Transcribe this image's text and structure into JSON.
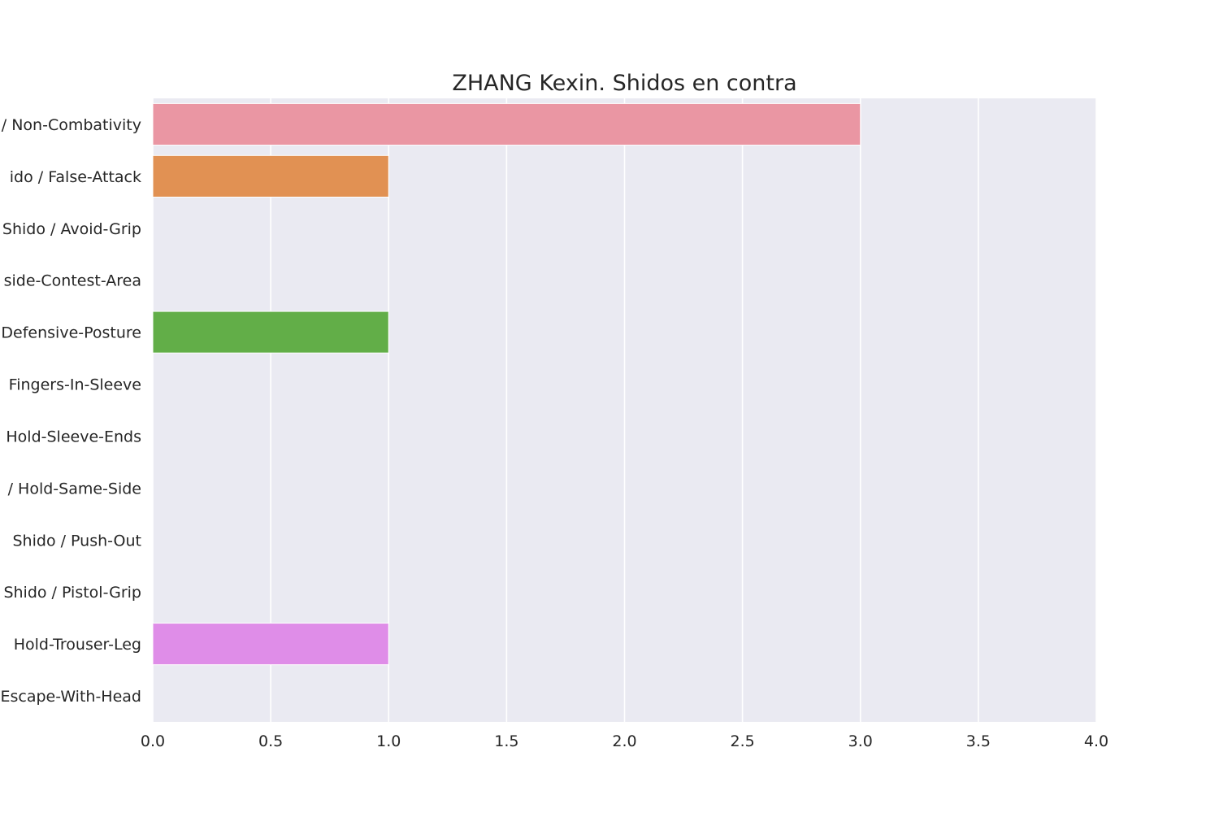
{
  "chart_data": {
    "type": "bar",
    "orientation": "horizontal",
    "title": "ZHANG Kexin. Shidos en contra",
    "xlabel": "",
    "ylabel": "",
    "xlim": [
      0,
      4
    ],
    "xticks": [
      "0.0",
      "0.5",
      "1.0",
      "1.5",
      "2.0",
      "2.5",
      "3.0",
      "3.5",
      "4.0"
    ],
    "grid": true,
    "background": "#eaeaf2",
    "categories": [
      "/ Non-Combativity",
      "ido / False-Attack",
      "Shido / Avoid-Grip",
      "side-Contest-Area",
      "Defensive-Posture",
      "Fingers-In-Sleeve",
      "Hold-Sleeve-Ends",
      "/ Hold-Same-Side",
      "Shido / Push-Out",
      "Shido / Pistol-Grip",
      "Hold-Trouser-Leg",
      "Escape-With-Head"
    ],
    "values": [
      3,
      1,
      0,
      0,
      1,
      0,
      0,
      0,
      0,
      0,
      1,
      0
    ],
    "colors": [
      "#ea96a3",
      "#e19153",
      "#b89b49",
      "#9da84c",
      "#62ae48",
      "#4caf88",
      "#4db1a1",
      "#51aab5",
      "#59a5d7",
      "#9b99e6",
      "#df8de8",
      "#e991c3"
    ]
  }
}
